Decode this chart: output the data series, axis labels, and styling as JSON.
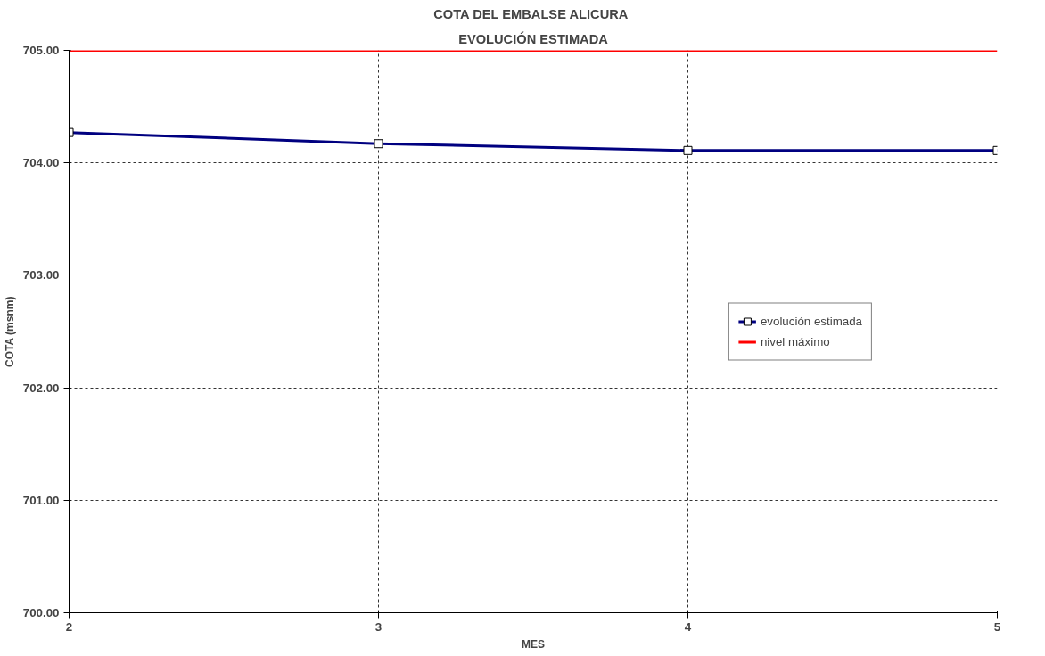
{
  "chart_data": {
    "type": "line",
    "title": "COTA DEL  EMBALSE ALICURA",
    "subtitle": "EVOLUCIÓN ESTIMADA",
    "xlabel": "MES",
    "ylabel": "COTA (msnm)",
    "x": [
      2,
      3,
      4,
      5
    ],
    "series": [
      {
        "name": "evolución estimada",
        "color": "#000080",
        "values": [
          704.27,
          704.17,
          704.11,
          704.11
        ],
        "marker": "square"
      },
      {
        "name": "nivel máximo",
        "color": "#ff0000",
        "values": [
          705,
          705,
          705,
          705
        ],
        "marker": "none"
      }
    ],
    "xlim": [
      2,
      5
    ],
    "ylim": [
      700,
      705
    ],
    "xticks": [
      2,
      3,
      4,
      5
    ],
    "yticks": [
      {
        "value": 700,
        "label": "700.00"
      },
      {
        "value": 701,
        "label": "701.00"
      },
      {
        "value": 702,
        "label": "702.00"
      },
      {
        "value": 703,
        "label": "703.00"
      },
      {
        "value": 704,
        "label": "704.00"
      },
      {
        "value": 705,
        "label": "705.00"
      }
    ],
    "grid": true,
    "legend": "right"
  }
}
